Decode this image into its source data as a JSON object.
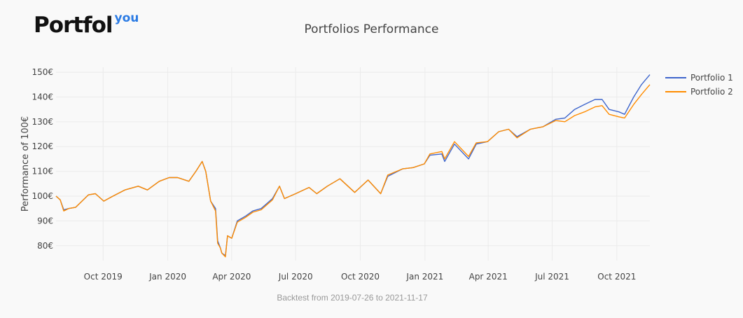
{
  "brand": {
    "logo_main": "Portfol",
    "logo_sup": "you",
    "accent_color": "#2b7be4"
  },
  "chart_data": {
    "type": "line",
    "title": "Portfolios Performance",
    "xlabel": "",
    "ylabel": "Performance of 100€",
    "x_range": [
      "2019-07-26",
      "2021-11-17"
    ],
    "ylim": [
      74,
      152
    ],
    "yticks": [
      80,
      90,
      100,
      110,
      120,
      130,
      140,
      150
    ],
    "ytick_labels": [
      "80€",
      "90€",
      "100€",
      "110€",
      "120€",
      "130€",
      "140€",
      "150€"
    ],
    "xticks": [
      "2019-10-01",
      "2020-01-01",
      "2020-04-01",
      "2020-07-01",
      "2020-10-01",
      "2021-01-01",
      "2021-04-01",
      "2021-07-01",
      "2021-10-01"
    ],
    "xtick_labels": [
      "Oct 2019",
      "Jan 2020",
      "Apr 2020",
      "Jul 2020",
      "Oct 2020",
      "Jan 2021",
      "Apr 2021",
      "Jul 2021",
      "Oct 2021"
    ],
    "grid": true,
    "legend_position": "top-right",
    "series": [
      {
        "name": "Portfolio 1",
        "color": "#3f66cc",
        "points": [
          [
            "2019-07-26",
            100
          ],
          [
            "2019-08-01",
            98.5
          ],
          [
            "2019-08-06",
            94.5
          ],
          [
            "2019-08-13",
            95
          ],
          [
            "2019-08-23",
            95.5
          ],
          [
            "2019-09-01",
            98
          ],
          [
            "2019-09-10",
            100.5
          ],
          [
            "2019-09-20",
            101
          ],
          [
            "2019-10-02",
            98
          ],
          [
            "2019-10-15",
            100
          ],
          [
            "2019-11-01",
            102.5
          ],
          [
            "2019-11-20",
            104
          ],
          [
            "2019-12-03",
            102.5
          ],
          [
            "2019-12-20",
            106
          ],
          [
            "2020-01-03",
            107.5
          ],
          [
            "2020-01-15",
            107.5
          ],
          [
            "2020-01-31",
            106
          ],
          [
            "2020-02-10",
            110
          ],
          [
            "2020-02-19",
            114
          ],
          [
            "2020-02-24",
            110
          ],
          [
            "2020-03-02",
            98
          ],
          [
            "2020-03-09",
            95
          ],
          [
            "2020-03-12",
            82
          ],
          [
            "2020-03-16",
            79
          ],
          [
            "2020-03-18",
            77
          ],
          [
            "2020-03-23",
            76
          ],
          [
            "2020-03-26",
            84
          ],
          [
            "2020-04-01",
            83
          ],
          [
            "2020-04-09",
            90
          ],
          [
            "2020-04-21",
            92
          ],
          [
            "2020-05-01",
            94
          ],
          [
            "2020-05-13",
            95
          ],
          [
            "2020-05-29",
            99
          ],
          [
            "2020-06-08",
            104
          ],
          [
            "2020-06-15",
            99
          ],
          [
            "2020-07-01",
            101
          ],
          [
            "2020-07-20",
            103.5
          ],
          [
            "2020-07-31",
            101
          ],
          [
            "2020-08-15",
            104
          ],
          [
            "2020-09-02",
            107
          ],
          [
            "2020-09-23",
            101.5
          ],
          [
            "2020-10-12",
            106.5
          ],
          [
            "2020-10-30",
            101
          ],
          [
            "2020-11-09",
            108
          ],
          [
            "2020-11-30",
            111
          ],
          [
            "2020-12-15",
            111.5
          ],
          [
            "2020-12-31",
            113
          ],
          [
            "2021-01-08",
            116.5
          ],
          [
            "2021-01-25",
            117
          ],
          [
            "2021-01-29",
            114
          ],
          [
            "2021-02-12",
            121
          ],
          [
            "2021-03-04",
            115
          ],
          [
            "2021-03-15",
            121
          ],
          [
            "2021-03-31",
            122
          ],
          [
            "2021-04-16",
            126
          ],
          [
            "2021-04-30",
            127
          ],
          [
            "2021-05-12",
            124
          ],
          [
            "2021-05-31",
            127
          ],
          [
            "2021-06-18",
            128
          ],
          [
            "2021-07-06",
            131
          ],
          [
            "2021-07-19",
            131.5
          ],
          [
            "2021-08-02",
            135
          ],
          [
            "2021-08-16",
            137
          ],
          [
            "2021-08-31",
            139
          ],
          [
            "2021-09-10",
            139
          ],
          [
            "2021-09-20",
            135
          ],
          [
            "2021-10-04",
            134
          ],
          [
            "2021-10-12",
            133
          ],
          [
            "2021-10-25",
            140
          ],
          [
            "2021-11-05",
            145
          ],
          [
            "2021-11-17",
            149
          ]
        ]
      },
      {
        "name": "Portfolio 2",
        "color": "#ff8c00",
        "points": [
          [
            "2019-07-26",
            100
          ],
          [
            "2019-08-01",
            98.5
          ],
          [
            "2019-08-06",
            94
          ],
          [
            "2019-08-13",
            95
          ],
          [
            "2019-08-23",
            95.5
          ],
          [
            "2019-09-01",
            98
          ],
          [
            "2019-09-10",
            100.5
          ],
          [
            "2019-09-20",
            101
          ],
          [
            "2019-10-02",
            98
          ],
          [
            "2019-10-15",
            100
          ],
          [
            "2019-11-01",
            102.5
          ],
          [
            "2019-11-20",
            104
          ],
          [
            "2019-12-03",
            102.5
          ],
          [
            "2019-12-20",
            106
          ],
          [
            "2020-01-03",
            107.5
          ],
          [
            "2020-01-15",
            107.5
          ],
          [
            "2020-01-31",
            106
          ],
          [
            "2020-02-10",
            110
          ],
          [
            "2020-02-19",
            114
          ],
          [
            "2020-02-24",
            110
          ],
          [
            "2020-03-02",
            98
          ],
          [
            "2020-03-09",
            94
          ],
          [
            "2020-03-12",
            81
          ],
          [
            "2020-03-16",
            79
          ],
          [
            "2020-03-18",
            77
          ],
          [
            "2020-03-23",
            75.5
          ],
          [
            "2020-03-26",
            84
          ],
          [
            "2020-04-01",
            83
          ],
          [
            "2020-04-09",
            89.5
          ],
          [
            "2020-04-21",
            91.5
          ],
          [
            "2020-05-01",
            93.5
          ],
          [
            "2020-05-13",
            94.5
          ],
          [
            "2020-05-29",
            98.5
          ],
          [
            "2020-06-08",
            104
          ],
          [
            "2020-06-15",
            99
          ],
          [
            "2020-07-01",
            101
          ],
          [
            "2020-07-20",
            103.5
          ],
          [
            "2020-07-31",
            101
          ],
          [
            "2020-08-15",
            104
          ],
          [
            "2020-09-02",
            107
          ],
          [
            "2020-09-23",
            101.5
          ],
          [
            "2020-10-12",
            106.5
          ],
          [
            "2020-10-30",
            101
          ],
          [
            "2020-11-09",
            108.5
          ],
          [
            "2020-11-30",
            111
          ],
          [
            "2020-12-15",
            111.5
          ],
          [
            "2020-12-31",
            113
          ],
          [
            "2021-01-08",
            117
          ],
          [
            "2021-01-25",
            118
          ],
          [
            "2021-01-29",
            115
          ],
          [
            "2021-02-12",
            122
          ],
          [
            "2021-03-04",
            116
          ],
          [
            "2021-03-15",
            121.5
          ],
          [
            "2021-03-31",
            122
          ],
          [
            "2021-04-16",
            126
          ],
          [
            "2021-04-30",
            127
          ],
          [
            "2021-05-12",
            123.5
          ],
          [
            "2021-05-31",
            127
          ],
          [
            "2021-06-18",
            128
          ],
          [
            "2021-07-06",
            130.5
          ],
          [
            "2021-07-19",
            130
          ],
          [
            "2021-08-02",
            132.5
          ],
          [
            "2021-08-16",
            134
          ],
          [
            "2021-08-31",
            136
          ],
          [
            "2021-09-10",
            136.5
          ],
          [
            "2021-09-20",
            133
          ],
          [
            "2021-10-04",
            132
          ],
          [
            "2021-10-12",
            131.5
          ],
          [
            "2021-10-25",
            137
          ],
          [
            "2021-11-05",
            141
          ],
          [
            "2021-11-17",
            145
          ]
        ]
      }
    ]
  },
  "footnote": "Backtest from 2019-07-26 to 2021-11-17"
}
